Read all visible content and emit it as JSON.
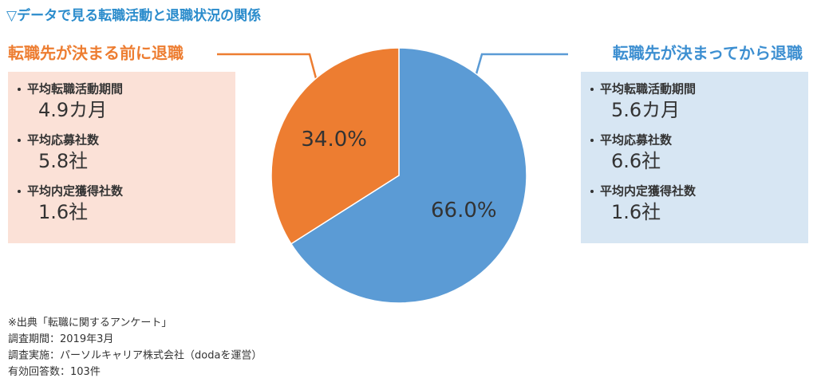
{
  "chart_data": {
    "type": "pie",
    "title": "▽データで見る転職活動と退職状況の関係",
    "categories": [
      "転職先が決まってから退職",
      "転職先が決まる前に退職"
    ],
    "values": [
      66.0,
      34.0
    ],
    "value_labels": [
      "66.0%",
      "34.0%"
    ],
    "colors": [
      "#5b9bd5",
      "#ed7d31"
    ]
  },
  "panels": [
    {
      "items": [
        {
          "label": "平均転職活動期間",
          "value": "5.6カ月"
        },
        {
          "label": "平均応募社数",
          "value": "6.6社"
        },
        {
          "label": "平均内定獲得社数",
          "value": "1.6社"
        }
      ]
    },
    {
      "items": [
        {
          "label": "平均転職活動期間",
          "value": "4.9カ月"
        },
        {
          "label": "平均応募社数",
          "value": "5.8社"
        },
        {
          "label": "平均内定獲得社数",
          "value": "1.6社"
        }
      ]
    }
  ],
  "notes": [
    "※出典「転職に関するアンケート」",
    "調査期間：2019年3月",
    "調査実施：パーソルキャリア株式会社（dodaを運営）",
    "有効回答数：103件"
  ]
}
